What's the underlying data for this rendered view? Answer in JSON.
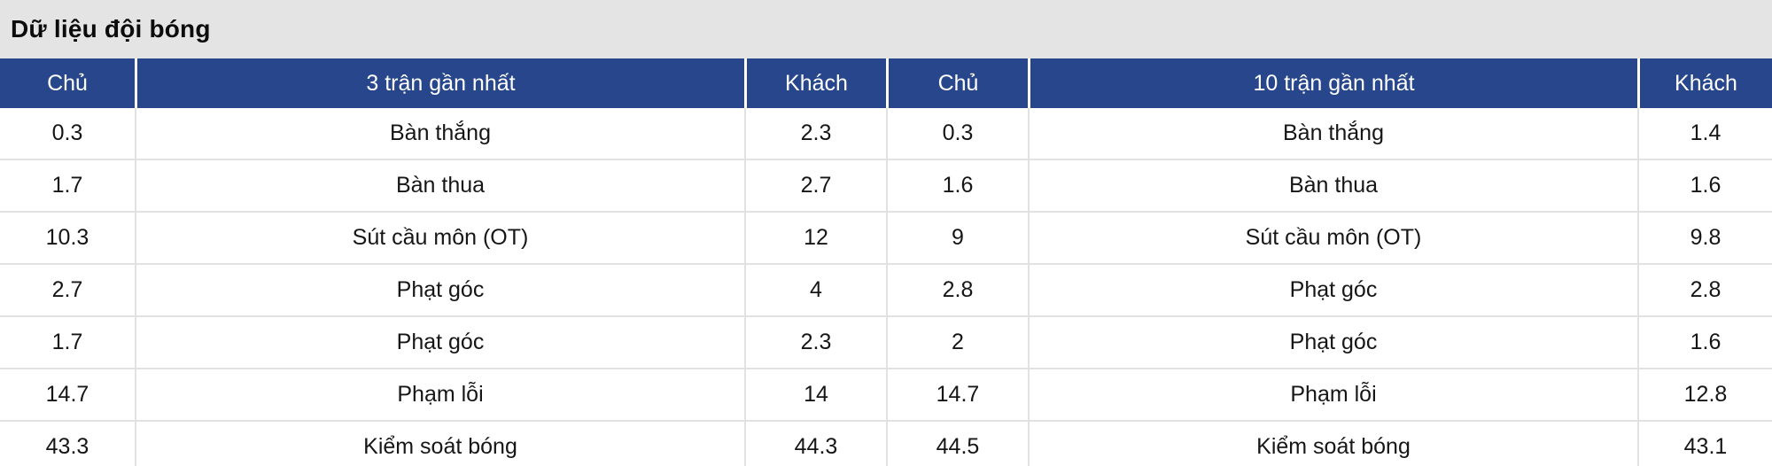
{
  "page": {
    "title": "Dữ liệu đội bóng"
  },
  "colors": {
    "header_bg": "#27468b",
    "header_text": "#ffffff",
    "title_bg": "#e4e4e4",
    "body_bg": "#ffffff",
    "divider": "#e2e2e2",
    "cell_text": "#161616"
  },
  "table": {
    "headers": [
      "Chủ",
      "3 trận gần nhất",
      "Khách",
      "Chủ",
      "10 trận gần nhất",
      "Khách"
    ],
    "rows": [
      [
        "0.3",
        "Bàn thắng",
        "2.3",
        "0.3",
        "Bàn thắng",
        "1.4"
      ],
      [
        "1.7",
        "Bàn thua",
        "2.7",
        "1.6",
        "Bàn thua",
        "1.6"
      ],
      [
        "10.3",
        "Sút cầu môn (OT)",
        "12",
        "9",
        "Sút cầu môn (OT)",
        "9.8"
      ],
      [
        "2.7",
        "Phạt góc",
        "4",
        "2.8",
        "Phạt góc",
        "2.8"
      ],
      [
        "1.7",
        "Phạt góc",
        "2.3",
        "2",
        "Phạt góc",
        "1.6"
      ],
      [
        "14.7",
        "Phạm lỗi",
        "14",
        "14.7",
        "Phạm lỗi",
        "12.8"
      ],
      [
        "43.3",
        "Kiểm soát bóng",
        "44.3",
        "44.5",
        "Kiểm soát bóng",
        "43.1"
      ]
    ]
  }
}
